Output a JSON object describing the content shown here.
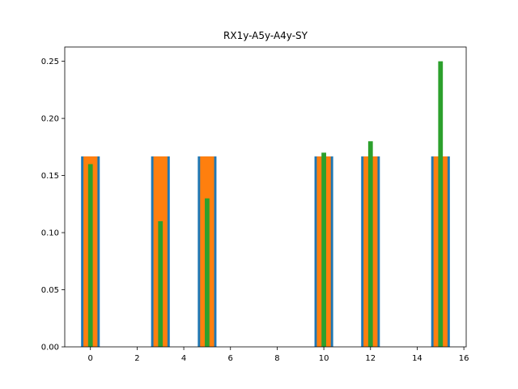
{
  "chart_data": {
    "type": "bar",
    "title": "RX1y-A5y-A4y-SY",
    "xlabel": "",
    "ylabel": "",
    "xlim": [
      -1.1,
      16.1
    ],
    "ylim": [
      0,
      0.2625
    ],
    "xticks": [
      0,
      2,
      4,
      6,
      8,
      10,
      12,
      14,
      16
    ],
    "yticks": [
      0.0,
      0.05,
      0.1,
      0.15,
      0.2,
      0.25
    ],
    "ytick_labels": [
      "0.00",
      "0.05",
      "0.10",
      "0.15",
      "0.20",
      "0.25"
    ],
    "grid": false,
    "x": [
      0,
      3,
      5,
      10,
      12,
      15
    ],
    "series": [
      {
        "values": [
          0.1667,
          0.1667,
          0.1667,
          0.1667,
          0.1667,
          0.1667
        ],
        "width": 0.8,
        "color": "#1f77b4"
      },
      {
        "values": [
          0.1667,
          0.1667,
          0.1667,
          0.1667,
          0.1667,
          0.1667
        ],
        "width": 0.6,
        "color": "#ff7f0e"
      },
      {
        "values": [
          0.16,
          0.11,
          0.13,
          0.17,
          0.18,
          0.25
        ],
        "width": 0.2,
        "color": "#2ca02c"
      }
    ]
  }
}
